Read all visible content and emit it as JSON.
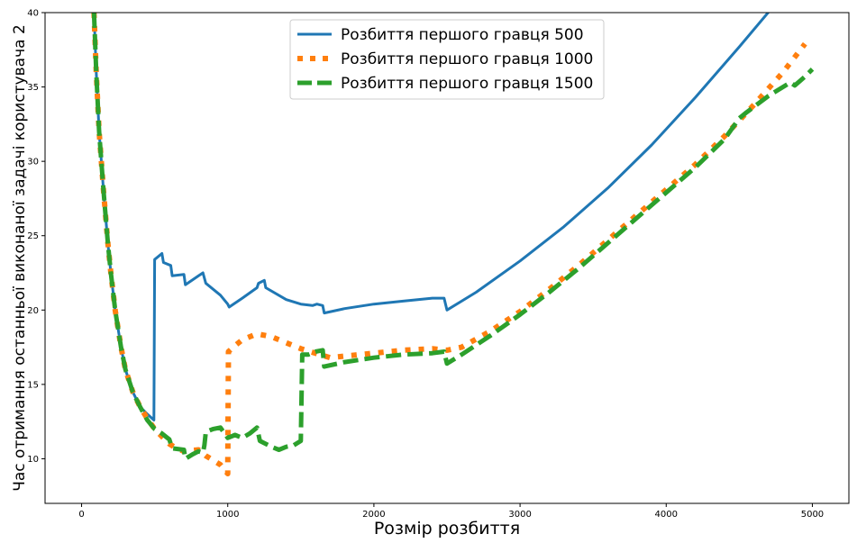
{
  "chart_data": {
    "type": "line",
    "title": "",
    "xlabel": "Розмір розбиття",
    "ylabel": "Час отримання останньої виконаної задачі користувача 2",
    "xlim": [
      -250,
      5250
    ],
    "ylim": [
      7,
      40
    ],
    "xticks": [
      0,
      1000,
      2000,
      3000,
      4000,
      5000
    ],
    "yticks": [
      10,
      15,
      20,
      25,
      30,
      35,
      40
    ],
    "grid": false,
    "legend_position": "top-center",
    "series": [
      {
        "name": "Розбиття першого гравця 500",
        "color": "#1f77b4",
        "style": "solid",
        "points": [
          [
            85,
            40
          ],
          [
            100,
            36
          ],
          [
            120,
            32
          ],
          [
            150,
            28
          ],
          [
            180,
            24.5
          ],
          [
            200,
            22.5
          ],
          [
            230,
            20
          ],
          [
            270,
            17.5
          ],
          [
            300,
            16
          ],
          [
            350,
            14.5
          ],
          [
            400,
            13.5
          ],
          [
            450,
            13
          ],
          [
            495,
            12.6
          ],
          [
            500,
            23.4
          ],
          [
            550,
            23.8
          ],
          [
            560,
            23.2
          ],
          [
            610,
            23
          ],
          [
            620,
            22.3
          ],
          [
            700,
            22.4
          ],
          [
            710,
            21.7
          ],
          [
            800,
            22.3
          ],
          [
            830,
            22.5
          ],
          [
            850,
            21.8
          ],
          [
            950,
            21
          ],
          [
            1000,
            20.4
          ],
          [
            1010,
            20.2
          ],
          [
            1100,
            20.8
          ],
          [
            1200,
            21.5
          ],
          [
            1210,
            21.8
          ],
          [
            1250,
            22
          ],
          [
            1260,
            21.5
          ],
          [
            1400,
            20.7
          ],
          [
            1500,
            20.4
          ],
          [
            1580,
            20.3
          ],
          [
            1610,
            20.4
          ],
          [
            1650,
            20.3
          ],
          [
            1660,
            19.8
          ],
          [
            1800,
            20.1
          ],
          [
            2000,
            20.4
          ],
          [
            2200,
            20.6
          ],
          [
            2400,
            20.8
          ],
          [
            2480,
            20.8
          ],
          [
            2500,
            20
          ],
          [
            2700,
            21.2
          ],
          [
            3000,
            23.3
          ],
          [
            3300,
            25.6
          ],
          [
            3600,
            28.2
          ],
          [
            3900,
            31.1
          ],
          [
            4200,
            34.3
          ],
          [
            4500,
            37.7
          ],
          [
            4800,
            41.2
          ],
          [
            4900,
            42.3
          ]
        ]
      },
      {
        "name": "Розбиття першого гравця 1000",
        "color": "#ff7f0e",
        "style": "dotted",
        "points": [
          [
            85,
            40
          ],
          [
            100,
            36
          ],
          [
            120,
            32
          ],
          [
            150,
            28
          ],
          [
            180,
            24.5
          ],
          [
            200,
            22.5
          ],
          [
            230,
            20
          ],
          [
            270,
            17.5
          ],
          [
            300,
            16
          ],
          [
            350,
            14.5
          ],
          [
            400,
            13.5
          ],
          [
            450,
            12.7
          ],
          [
            500,
            12
          ],
          [
            550,
            11.5
          ],
          [
            600,
            11
          ],
          [
            650,
            10.7
          ],
          [
            700,
            10.5
          ],
          [
            800,
            10.6
          ],
          [
            850,
            10.2
          ],
          [
            900,
            9.9
          ],
          [
            950,
            9.6
          ],
          [
            1000,
            9.0
          ],
          [
            1005,
            17.2
          ],
          [
            1050,
            17.6
          ],
          [
            1100,
            18
          ],
          [
            1200,
            18.4
          ],
          [
            1300,
            18.2
          ],
          [
            1400,
            17.8
          ],
          [
            1500,
            17.4
          ],
          [
            1600,
            17.1
          ],
          [
            1700,
            16.8
          ],
          [
            1800,
            16.9
          ],
          [
            2000,
            17.1
          ],
          [
            2200,
            17.3
          ],
          [
            2400,
            17.4
          ],
          [
            2500,
            17.3
          ],
          [
            2600,
            17.5
          ],
          [
            2800,
            18.6
          ],
          [
            3000,
            19.9
          ],
          [
            3200,
            21.4
          ],
          [
            3400,
            23
          ],
          [
            3600,
            24.7
          ],
          [
            3800,
            26.4
          ],
          [
            4000,
            28.1
          ],
          [
            4200,
            29.8
          ],
          [
            4400,
            31.7
          ],
          [
            4600,
            33.8
          ],
          [
            4800,
            36
          ],
          [
            4950,
            37.9
          ]
        ]
      },
      {
        "name": "Розбиття першого гравця 1500",
        "color": "#2ca02c",
        "style": "dashed",
        "points": [
          [
            85,
            40
          ],
          [
            100,
            36
          ],
          [
            120,
            32
          ],
          [
            150,
            28
          ],
          [
            180,
            24.5
          ],
          [
            200,
            22.5
          ],
          [
            230,
            20
          ],
          [
            270,
            17.5
          ],
          [
            300,
            16
          ],
          [
            350,
            14.5
          ],
          [
            400,
            13.5
          ],
          [
            450,
            12.6
          ],
          [
            500,
            12
          ],
          [
            550,
            11.7
          ],
          [
            600,
            11.3
          ],
          [
            620,
            10.7
          ],
          [
            700,
            10.6
          ],
          [
            710,
            10
          ],
          [
            760,
            10.3
          ],
          [
            800,
            10.5
          ],
          [
            830,
            10.4
          ],
          [
            840,
            10.9
          ],
          [
            850,
            11.8
          ],
          [
            900,
            12
          ],
          [
            950,
            12.1
          ],
          [
            1000,
            11.4
          ],
          [
            1050,
            11.6
          ],
          [
            1100,
            11.4
          ],
          [
            1150,
            11.7
          ],
          [
            1200,
            12.1
          ],
          [
            1220,
            11.2
          ],
          [
            1300,
            10.8
          ],
          [
            1350,
            10.6
          ],
          [
            1400,
            10.8
          ],
          [
            1450,
            10.9
          ],
          [
            1500,
            11.2
          ],
          [
            1510,
            17
          ],
          [
            1550,
            17
          ],
          [
            1600,
            17.2
          ],
          [
            1650,
            17.3
          ],
          [
            1660,
            16.2
          ],
          [
            1800,
            16.5
          ],
          [
            2000,
            16.8
          ],
          [
            2200,
            17
          ],
          [
            2400,
            17.1
          ],
          [
            2480,
            17.2
          ],
          [
            2500,
            16.4
          ],
          [
            2600,
            17
          ],
          [
            2800,
            18.3
          ],
          [
            3000,
            19.7
          ],
          [
            3200,
            21.2
          ],
          [
            3400,
            22.8
          ],
          [
            3600,
            24.5
          ],
          [
            3800,
            26.2
          ],
          [
            4000,
            27.9
          ],
          [
            4200,
            29.6
          ],
          [
            4400,
            31.5
          ],
          [
            4500,
            32.9
          ],
          [
            4550,
            33.3
          ],
          [
            4700,
            34.4
          ],
          [
            4850,
            35.3
          ],
          [
            4880,
            35.1
          ],
          [
            4950,
            35.7
          ],
          [
            5000,
            36.2
          ]
        ]
      }
    ]
  }
}
